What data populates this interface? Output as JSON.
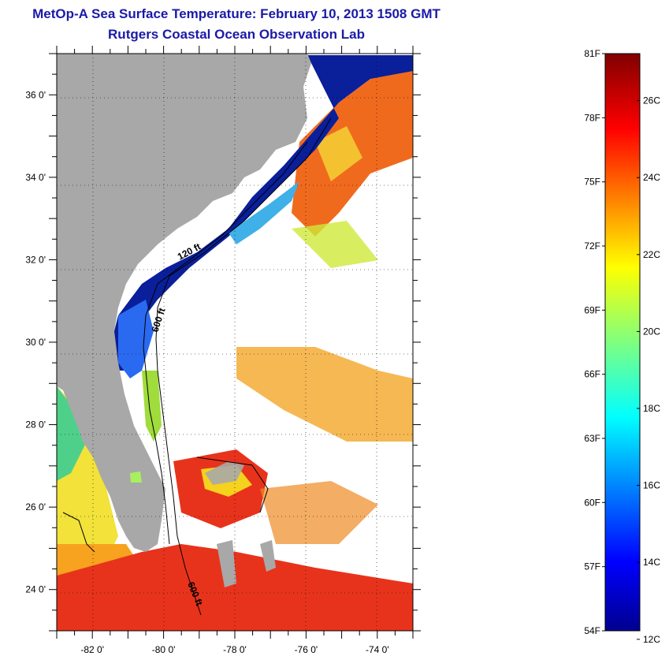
{
  "title": "MetOp-A Sea Surface Temperature:  February 10, 2013 1508 GMT",
  "subtitle": "Rutgers Coastal Ocean Observation Lab",
  "map": {
    "lon_range": [
      -83,
      -73
    ],
    "lat_range": [
      23,
      37
    ],
    "lat_ticks": [
      {
        "value": 24,
        "label": "24 0'"
      },
      {
        "value": 26,
        "label": "26 0'"
      },
      {
        "value": 28,
        "label": "28 0'"
      },
      {
        "value": 30,
        "label": "30 0'"
      },
      {
        "value": 32,
        "label": "32 0'"
      },
      {
        "value": 34,
        "label": "34 0'"
      },
      {
        "value": 36,
        "label": "36 0'"
      }
    ],
    "lon_ticks": [
      {
        "value": -82,
        "label": "-82 0'"
      },
      {
        "value": -80,
        "label": "-80 0'"
      },
      {
        "value": -78,
        "label": "-78 0'"
      },
      {
        "value": -76,
        "label": "-76 0'"
      },
      {
        "value": -74,
        "label": "-74 0'"
      }
    ],
    "isobaths": [
      {
        "label": "120 ft"
      },
      {
        "label": "600 ft"
      },
      {
        "label": "600 ft"
      }
    ],
    "land_color": "#a8a8a8",
    "grid": "dotted"
  },
  "colorbar": {
    "min_f": 54,
    "max_f": 81,
    "fahrenheit_labels": [
      "81F",
      "78F",
      "75F",
      "72F",
      "69F",
      "66F",
      "63F",
      "60F",
      "57F",
      "54F"
    ],
    "celsius_labels": [
      "26C",
      "24C",
      "22C",
      "20C",
      "18C",
      "16C",
      "14C",
      "12C"
    ],
    "colormap": "jet"
  }
}
